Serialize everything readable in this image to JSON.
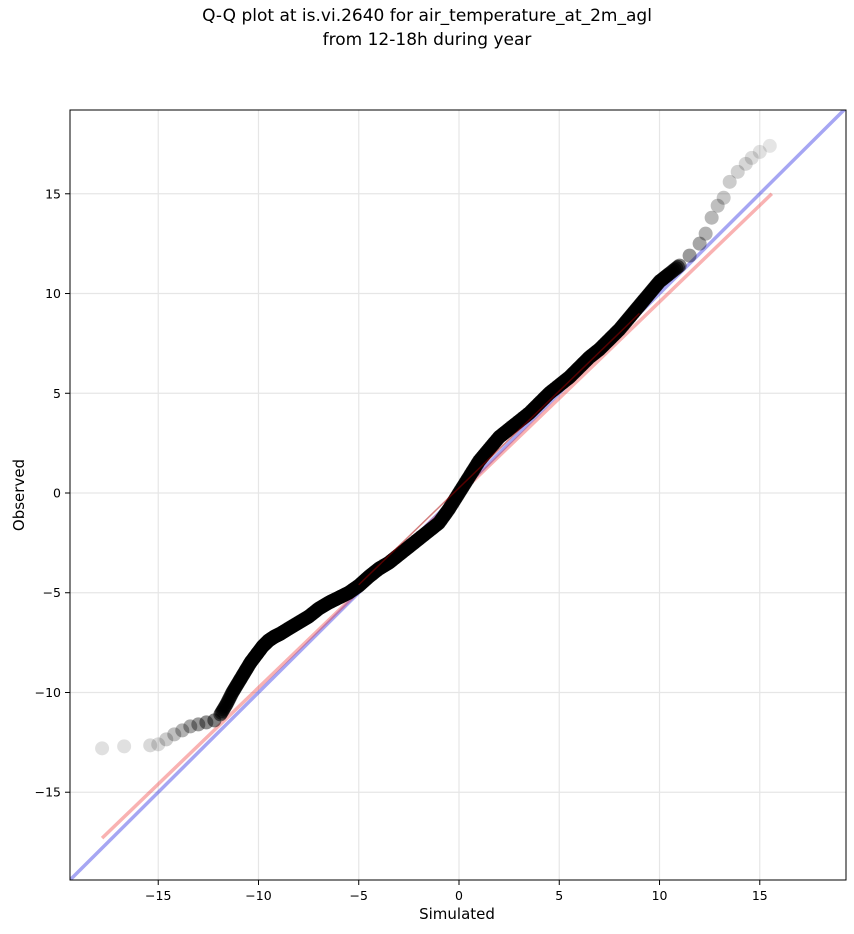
{
  "chart_data": {
    "type": "scatter",
    "title_line1": "Q-Q plot at is.vi.2640 for air_temperature_at_2m_agl",
    "title_line2": "from 12-18h during year",
    "xlabel": "Simulated",
    "ylabel": "Observed",
    "xlim": [
      -19.4,
      19.3
    ],
    "ylim": [
      -19.4,
      19.2
    ],
    "xticks": [
      -15,
      -10,
      -5,
      0,
      5,
      10,
      15
    ],
    "yticks": [
      -15,
      -10,
      -5,
      0,
      5,
      10,
      15
    ],
    "xtick_labels": [
      "−15",
      "−10",
      "−5",
      "0",
      "5",
      "10",
      "15"
    ],
    "ytick_labels": [
      "−15",
      "−10",
      "−5",
      "0",
      "5",
      "10",
      "15"
    ],
    "grid": true,
    "colors": {
      "points": "#000000",
      "identity_line": "#0000dd",
      "fit_line": "#ee2222",
      "grid": "#e6e6e6"
    },
    "series": [
      {
        "kind": "points",
        "x": [
          -17.8,
          -16.7,
          -15.4,
          -15.0,
          -14.6,
          -14.2,
          -13.8,
          -13.4,
          -13.0,
          -12.6,
          -12.2,
          -11.9,
          -11.6,
          -11.3,
          -11.0,
          -10.7,
          -10.4,
          -10.1,
          -9.8,
          -9.5,
          -9.2,
          -8.9,
          -8.5,
          -8.0,
          -7.5,
          -7.0,
          -6.5,
          -6.0,
          -5.5,
          -5.0,
          -4.5,
          -4.0,
          -3.5,
          -3.0,
          -2.5,
          -2.0,
          -1.5,
          -1.0,
          -0.5,
          0.0,
          0.5,
          1.0,
          1.5,
          2.0,
          2.5,
          3.0,
          3.5,
          4.0,
          4.5,
          5.0,
          5.5,
          6.0,
          6.5,
          7.0,
          7.5,
          8.0,
          8.5,
          9.0,
          9.5,
          10.0,
          10.5,
          11.0,
          11.5,
          12.0,
          12.3,
          12.6,
          12.9,
          13.2,
          13.5,
          13.9,
          14.3,
          14.6,
          15.0,
          15.5
        ],
        "y": [
          -12.8,
          -12.7,
          -12.65,
          -12.6,
          -12.35,
          -12.1,
          -11.9,
          -11.7,
          -11.6,
          -11.5,
          -11.4,
          -11.1,
          -10.6,
          -10.0,
          -9.5,
          -9.0,
          -8.5,
          -8.1,
          -7.7,
          -7.4,
          -7.2,
          -7.05,
          -6.8,
          -6.5,
          -6.2,
          -5.8,
          -5.5,
          -5.25,
          -5.0,
          -4.65,
          -4.2,
          -3.8,
          -3.5,
          -3.1,
          -2.7,
          -2.3,
          -1.9,
          -1.5,
          -0.8,
          0.0,
          0.8,
          1.6,
          2.2,
          2.8,
          3.2,
          3.6,
          4.0,
          4.5,
          5.0,
          5.4,
          5.8,
          6.3,
          6.8,
          7.2,
          7.7,
          8.2,
          8.8,
          9.4,
          10.0,
          10.6,
          11.0,
          11.4,
          11.9,
          12.5,
          13.0,
          13.8,
          14.4,
          14.8,
          15.6,
          16.1,
          16.5,
          16.8,
          17.1,
          17.4
        ],
        "alpha": [
          0.12,
          0.12,
          0.15,
          0.15,
          0.2,
          0.25,
          0.3,
          0.35,
          0.4,
          0.45,
          0.5,
          0.55,
          0.6,
          0.65,
          0.7,
          0.75,
          0.8,
          0.85,
          0.85,
          0.85,
          0.85,
          0.85,
          0.85,
          0.85,
          0.85,
          0.85,
          0.85,
          0.85,
          0.85,
          0.85,
          0.85,
          0.85,
          0.85,
          0.85,
          0.85,
          0.85,
          0.85,
          0.85,
          0.85,
          0.85,
          0.85,
          0.85,
          0.85,
          0.85,
          0.85,
          0.85,
          0.85,
          0.85,
          0.85,
          0.85,
          0.85,
          0.85,
          0.85,
          0.85,
          0.85,
          0.85,
          0.85,
          0.85,
          0.85,
          0.8,
          0.6,
          0.5,
          0.4,
          0.35,
          0.3,
          0.28,
          0.25,
          0.22,
          0.2,
          0.18,
          0.16,
          0.14,
          0.12,
          0.1
        ]
      },
      {
        "kind": "line",
        "role": "identity",
        "x": [
          -19.4,
          19.3
        ],
        "y": [
          -19.4,
          19.3
        ]
      },
      {
        "kind": "line",
        "role": "fit",
        "x": [
          -17.8,
          15.6
        ],
        "y": [
          -17.3,
          15.0
        ]
      }
    ]
  }
}
